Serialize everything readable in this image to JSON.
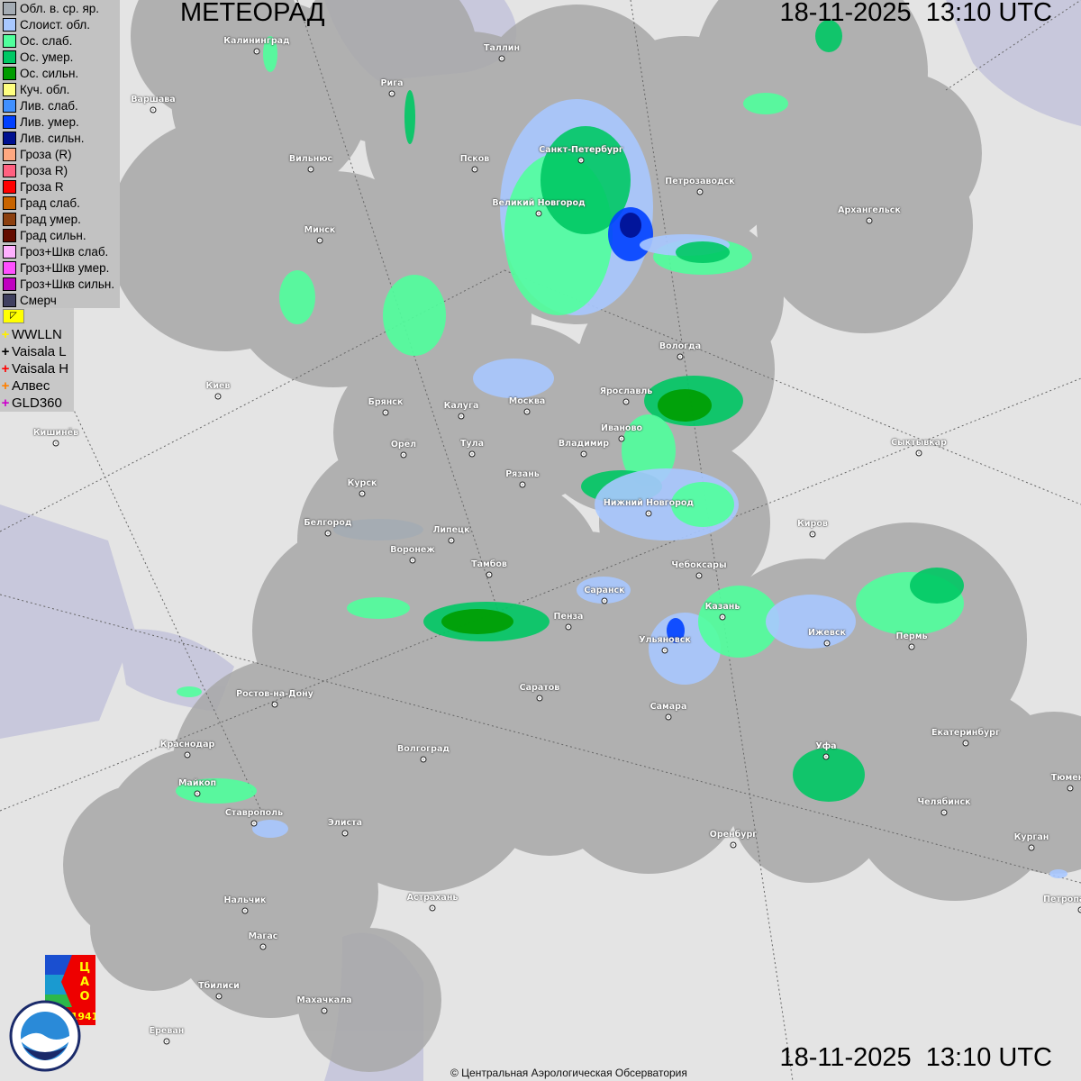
{
  "header": {
    "title": "МЕТЕОРАД",
    "datetime_top": "18-11-2025  13:10 UTC",
    "datetime_bottom": "18-11-2025  13:10 UTC"
  },
  "legend": {
    "items": [
      {
        "label": "Обл. в. ср. яр.",
        "color": "#a4acb4"
      },
      {
        "label": "Слоист. обл.",
        "color": "#a8c8ff"
      },
      {
        "label": "Ос. слаб.",
        "color": "#50ff9c"
      },
      {
        "label": "Ос. умер.",
        "color": "#00c864"
      },
      {
        "label": "Ос. сильн.",
        "color": "#009c00"
      },
      {
        "label": "Куч. обл.",
        "color": "#ffff80"
      },
      {
        "label": "Лив. слаб.",
        "color": "#4090ff"
      },
      {
        "label": "Лив. умер.",
        "color": "#0040ff"
      },
      {
        "label": "Лив. сильн.",
        "color": "#001090"
      },
      {
        "label": "Гроза (R)",
        "color": "#ffa880"
      },
      {
        "label": "Гроза R)",
        "color": "#ff6080"
      },
      {
        "label": "Гроза R",
        "color": "#ff0000"
      },
      {
        "label": "Град слаб.",
        "color": "#c86400"
      },
      {
        "label": "Град умер.",
        "color": "#8c4010"
      },
      {
        "label": "Град сильн.",
        "color": "#640c00"
      },
      {
        "label": "Гроз+Шкв слаб.",
        "color": "#ffb0ff"
      },
      {
        "label": "Гроз+Шкв умер.",
        "color": "#ff50ff"
      },
      {
        "label": "Гроз+Шкв сильн.",
        "color": "#c000c0"
      },
      {
        "label": "Смерч",
        "color": "#404060"
      }
    ],
    "lightning_toggle_icon": "lightning-toggle-icon",
    "lightning": [
      {
        "label": "WWLLN",
        "color": "#ffee00"
      },
      {
        "label": "Vaisala L",
        "color": "#000000"
      },
      {
        "label": "Vaisala H",
        "color": "#ff0000"
      },
      {
        "label": "Алвес",
        "color": "#ff8000"
      },
      {
        "label": "GLD360",
        "color": "#cc00cc"
      }
    ]
  },
  "cities": [
    "Калининград",
    "Таллин",
    "Рига",
    "Варшава",
    "Вильнюс",
    "Псков",
    "Санкт-Петербург",
    "Петрозаводск",
    "Архангельск",
    "Великий Новгород",
    "Минск",
    "Вологда",
    "Киев",
    "Брянск",
    "Калуга",
    "Москва",
    "Ярославль",
    "Иваново",
    "Кишинёв",
    "Орёл",
    "Тула",
    "Владимир",
    "Сыктывкар",
    "Рязань",
    "Курск",
    "Нижний Новгород",
    "Киров",
    "Белгород",
    "Липецк",
    "Воронеж",
    "Тамбов",
    "Чебоксары",
    "Саранск",
    "Казань",
    "Пенза",
    "Ижевск",
    "Пермь",
    "Ульяновск",
    "Саратов",
    "Самара",
    "Ростов-на-Дону",
    "Екатеринбург",
    "Краснодар",
    "Волгоград",
    "Уфа",
    "Тюмень",
    "Майкоп",
    "Челябинск",
    "Ставрополь",
    "Элиста",
    "Оренбург",
    "Курган",
    "Астрахань",
    "Нальчик",
    "Петропавловск",
    "Магас",
    "Махачкала",
    "Тбилиси",
    "Ереван"
  ],
  "logos": {
    "cao": "ЦАО 1941",
    "roshydromet": "РОСГИДРОМЕТ ROSHYDROMET"
  },
  "colors": {
    "map_bg": "#e4e4e4",
    "radar_coverage": "#a8a8a8",
    "sea": "#c8c8dc"
  },
  "footer": {
    "copyright": "© Центральная Аэрологическая Обсерватория"
  }
}
